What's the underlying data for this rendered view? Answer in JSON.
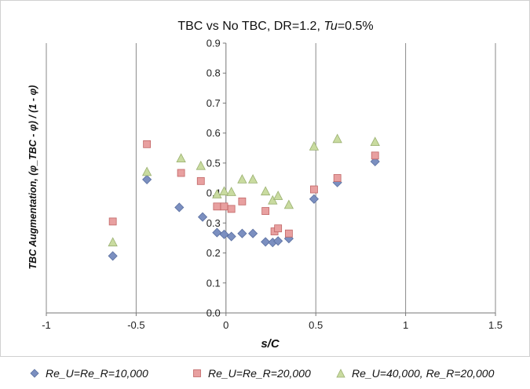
{
  "chart_data": {
    "type": "scatter",
    "title": "TBC vs No TBC, DR=1.2, ",
    "title_italic": "Tu",
    "title_suffix": "=0.5%",
    "xlabel": "s/C",
    "ylabel": "TBC Augmentation, (φ_TBC - φ) / (1 - φ)",
    "xlim": [
      -1,
      1.5
    ],
    "ylim": [
      0,
      0.9
    ],
    "xticks": [
      -1,
      -0.5,
      0,
      0.5,
      1,
      1.5
    ],
    "xtick_labels": [
      "-1",
      "-0.5",
      "0",
      "0.5",
      "1",
      "1.5"
    ],
    "yticks": [
      0,
      0.1,
      0.2,
      0.3,
      0.4,
      0.5,
      0.6,
      0.7,
      0.8,
      0.9
    ],
    "ytick_labels": [
      "0.0",
      "0.1",
      "0.2",
      "0.3",
      "0.4",
      "0.5",
      "0.6",
      "0.7",
      "0.8",
      "0.9"
    ],
    "grid": "vertical",
    "legend_position": "bottom",
    "series": [
      {
        "name": "Re_U=Re_R=10,000",
        "marker": "diamond",
        "color": "#7b8fc0",
        "points": [
          [
            -0.63,
            0.19
          ],
          [
            -0.44,
            0.445
          ],
          [
            -0.26,
            0.352
          ],
          [
            -0.13,
            0.32
          ],
          [
            -0.05,
            0.268
          ],
          [
            -0.01,
            0.262
          ],
          [
            0.03,
            0.255
          ],
          [
            0.09,
            0.265
          ],
          [
            0.15,
            0.265
          ],
          [
            0.22,
            0.237
          ],
          [
            0.26,
            0.235
          ],
          [
            0.29,
            0.24
          ],
          [
            0.35,
            0.248
          ],
          [
            0.49,
            0.38
          ],
          [
            0.62,
            0.435
          ],
          [
            0.83,
            0.505
          ]
        ]
      },
      {
        "name": "Re_U=Re_R=20,000",
        "marker": "square",
        "color": "#e8a0a0",
        "points": [
          [
            -0.63,
            0.305
          ],
          [
            -0.44,
            0.563
          ],
          [
            -0.25,
            0.467
          ],
          [
            -0.14,
            0.44
          ],
          [
            -0.05,
            0.355
          ],
          [
            -0.01,
            0.355
          ],
          [
            0.03,
            0.347
          ],
          [
            0.09,
            0.372
          ],
          [
            0.22,
            0.34
          ],
          [
            0.27,
            0.272
          ],
          [
            0.29,
            0.282
          ],
          [
            0.35,
            0.265
          ],
          [
            0.49,
            0.412
          ],
          [
            0.62,
            0.45
          ],
          [
            0.83,
            0.525
          ]
        ]
      },
      {
        "name": "Re_U=40,000, Re_R=20,000",
        "marker": "triangle",
        "color": "#c9dba0",
        "points": [
          [
            -0.63,
            0.235
          ],
          [
            -0.44,
            0.47
          ],
          [
            -0.25,
            0.515
          ],
          [
            -0.14,
            0.49
          ],
          [
            -0.05,
            0.395
          ],
          [
            -0.01,
            0.405
          ],
          [
            0.03,
            0.403
          ],
          [
            0.09,
            0.445
          ],
          [
            0.15,
            0.445
          ],
          [
            0.22,
            0.405
          ],
          [
            0.26,
            0.375
          ],
          [
            0.29,
            0.39
          ],
          [
            0.35,
            0.36
          ],
          [
            0.49,
            0.555
          ],
          [
            0.62,
            0.58
          ],
          [
            0.83,
            0.57
          ]
        ]
      }
    ]
  }
}
